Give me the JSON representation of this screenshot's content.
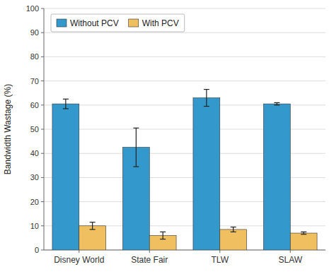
{
  "chart_data": {
    "type": "bar",
    "categories": [
      "Disney World",
      "State Fair",
      "TLW",
      "SLAW"
    ],
    "series": [
      {
        "name": "Without PCV",
        "color": "#3399cc",
        "values": [
          60.5,
          42.5,
          63.0,
          60.5
        ],
        "errors": [
          2.0,
          8.0,
          3.5,
          0.5
        ]
      },
      {
        "name": "With PCV",
        "color": "#f0c060",
        "values": [
          10.0,
          6.0,
          8.5,
          7.0
        ],
        "errors": [
          1.5,
          1.5,
          1.0,
          0.5
        ]
      }
    ],
    "ylabel": "Bandwidth Wastage (%)",
    "ylim": [
      0,
      100
    ],
    "yticks": [
      0,
      10,
      20,
      30,
      40,
      50,
      60,
      70,
      80,
      90,
      100
    ],
    "grid": true,
    "legend": "upper left"
  }
}
